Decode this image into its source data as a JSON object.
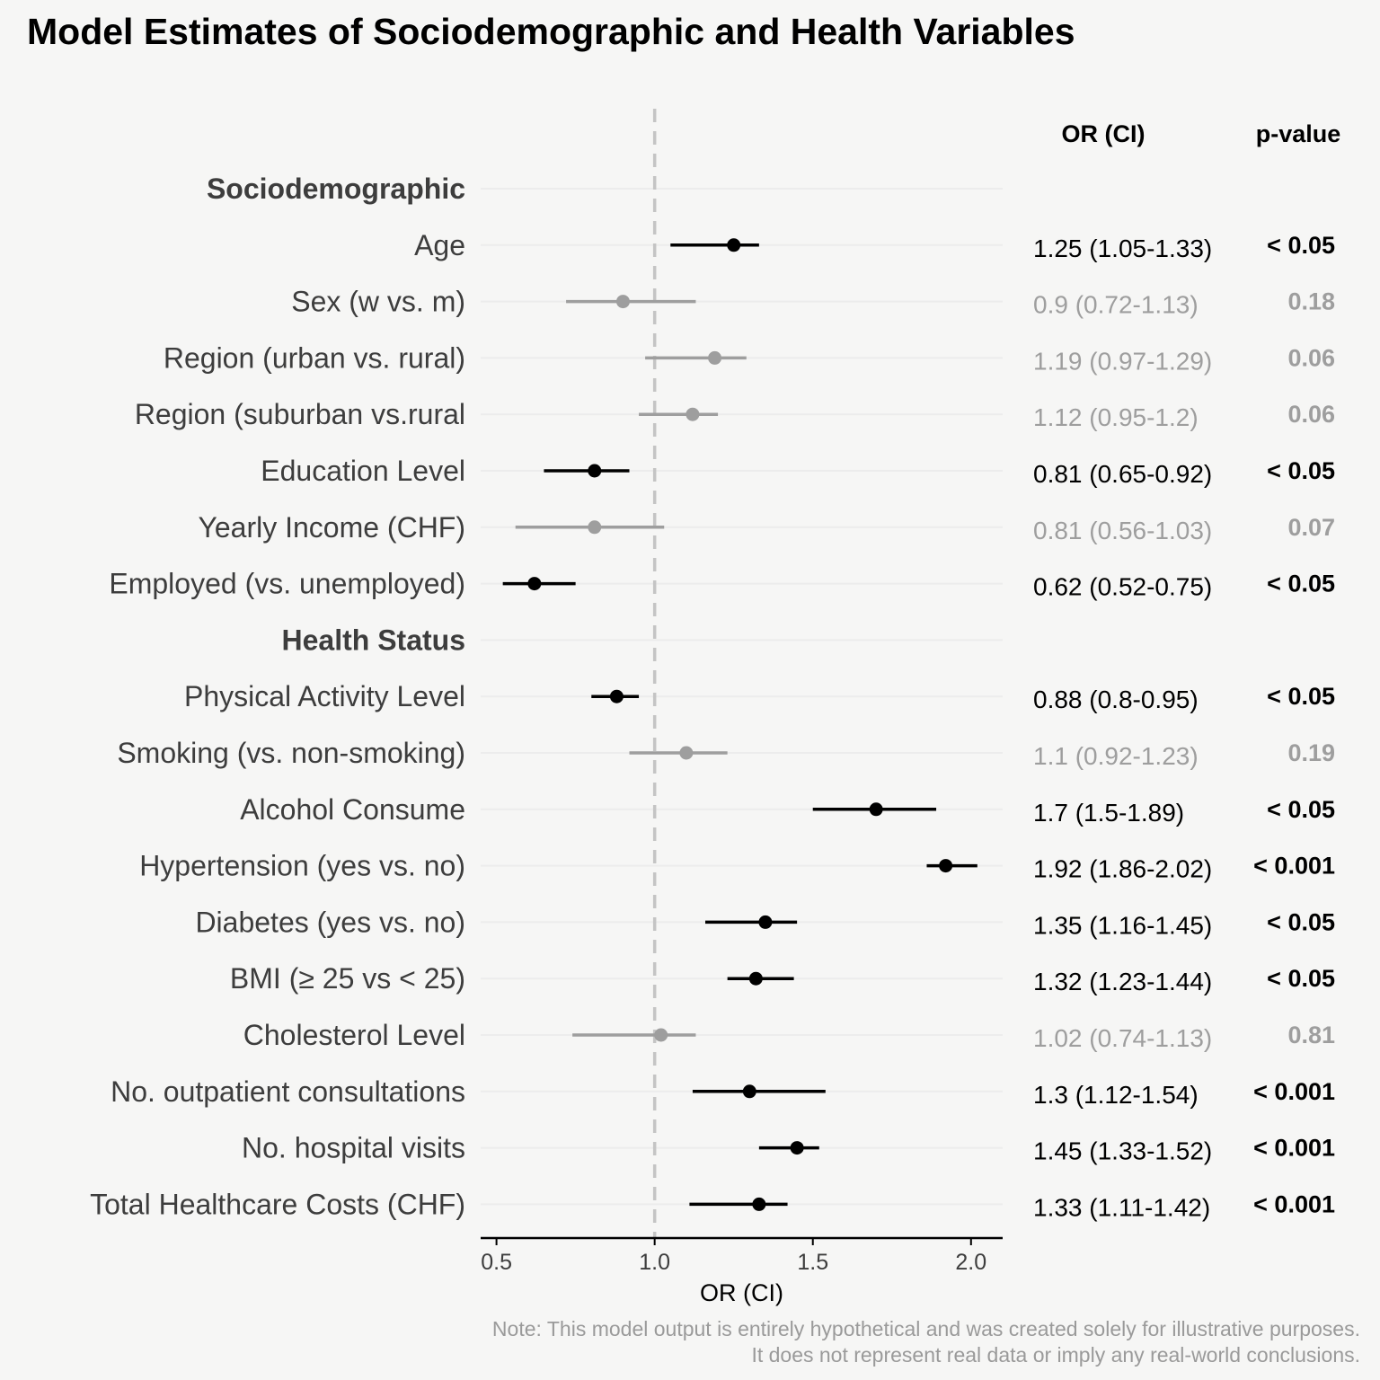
{
  "title": "Model Estimates of Sociodemographic and Health Variables",
  "note": {
    "line1": "Note: This model output is entirely hypothetical and was created solely for illustrative purposes.",
    "line2": "It does not represent real data or imply any real-world conclusions."
  },
  "colors": {
    "significant": "#000000",
    "nonsignificant": "#9e9e9e",
    "reference_line": "#c4c4c4",
    "background": "#f6f6f5",
    "group_header": "#3d3d3d",
    "row_label": "#3d3d3d"
  },
  "chart_data": {
    "type": "forest",
    "xlabel": "OR (CI)",
    "xlim": [
      0.45,
      2.1
    ],
    "xticks": [
      "0.5",
      "1.0",
      "1.5",
      "2.0"
    ],
    "reference_value": 1.0,
    "table_headers": {
      "estimate": "OR (CI)",
      "pvalue": "p-value"
    },
    "rows": [
      {
        "kind": "group",
        "label": "Sociodemographic"
      },
      {
        "kind": "item",
        "label": "Age",
        "or": 1.25,
        "lo": 1.05,
        "hi": 1.33,
        "or_ci": "1.25 (1.05-1.33)",
        "p": "< 0.05",
        "significant": true
      },
      {
        "kind": "item",
        "label": "Sex (w vs. m)",
        "or": 0.9,
        "lo": 0.72,
        "hi": 1.13,
        "or_ci": "0.9 (0.72-1.13)",
        "p": "0.18",
        "significant": false
      },
      {
        "kind": "item",
        "label": "Region (urban vs. rural)",
        "or": 1.19,
        "lo": 0.97,
        "hi": 1.29,
        "or_ci": "1.19 (0.97-1.29)",
        "p": "0.06",
        "significant": false
      },
      {
        "kind": "item",
        "label": "Region (suburban vs.rural",
        "or": 1.12,
        "lo": 0.95,
        "hi": 1.2,
        "or_ci": "1.12 (0.95-1.2)",
        "p": "0.06",
        "significant": false
      },
      {
        "kind": "item",
        "label": "Education Level",
        "or": 0.81,
        "lo": 0.65,
        "hi": 0.92,
        "or_ci": "0.81 (0.65-0.92)",
        "p": "< 0.05",
        "significant": true
      },
      {
        "kind": "item",
        "label": "Yearly Income (CHF)",
        "or": 0.81,
        "lo": 0.56,
        "hi": 1.03,
        "or_ci": "0.81 (0.56-1.03)",
        "p": "0.07",
        "significant": false
      },
      {
        "kind": "item",
        "label": "Employed (vs. unemployed)",
        "or": 0.62,
        "lo": 0.52,
        "hi": 0.75,
        "or_ci": "0.62 (0.52-0.75)",
        "p": "< 0.05",
        "significant": true
      },
      {
        "kind": "group",
        "label": "Health Status"
      },
      {
        "kind": "item",
        "label": "Physical Activity Level",
        "or": 0.88,
        "lo": 0.8,
        "hi": 0.95,
        "or_ci": "0.88 (0.8-0.95)",
        "p": "< 0.05",
        "significant": true
      },
      {
        "kind": "item",
        "label": "Smoking (vs. non-smoking)",
        "or": 1.1,
        "lo": 0.92,
        "hi": 1.23,
        "or_ci": "1.1 (0.92-1.23)",
        "p": "0.19",
        "significant": false
      },
      {
        "kind": "item",
        "label": "Alcohol Consume",
        "or": 1.7,
        "lo": 1.5,
        "hi": 1.89,
        "or_ci": "1.7 (1.5-1.89)",
        "p": "< 0.05",
        "significant": true
      },
      {
        "kind": "item",
        "label": "Hypertension (yes vs. no)",
        "or": 1.92,
        "lo": 1.86,
        "hi": 2.02,
        "or_ci": "1.92 (1.86-2.02)",
        "p": "< 0.001",
        "significant": true
      },
      {
        "kind": "item",
        "label": "Diabetes (yes vs. no)",
        "or": 1.35,
        "lo": 1.16,
        "hi": 1.45,
        "or_ci": "1.35 (1.16-1.45)",
        "p": "< 0.05",
        "significant": true
      },
      {
        "kind": "item",
        "label": "BMI (≥ 25 vs < 25)",
        "or": 1.32,
        "lo": 1.23,
        "hi": 1.44,
        "or_ci": "1.32 (1.23-1.44)",
        "p": "< 0.05",
        "significant": true
      },
      {
        "kind": "item",
        "label": "Cholesterol Level",
        "or": 1.02,
        "lo": 0.74,
        "hi": 1.13,
        "or_ci": "1.02 (0.74-1.13)",
        "p": "0.81",
        "significant": false
      },
      {
        "kind": "item",
        "label": "No. outpatient consultations",
        "or": 1.3,
        "lo": 1.12,
        "hi": 1.54,
        "or_ci": "1.3 (1.12-1.54)",
        "p": "< 0.001",
        "significant": true
      },
      {
        "kind": "item",
        "label": "No. hospital visits",
        "or": 1.45,
        "lo": 1.33,
        "hi": 1.52,
        "or_ci": "1.45 (1.33-1.52)",
        "p": "< 0.001",
        "significant": true
      },
      {
        "kind": "item",
        "label": "Total Healthcare Costs (CHF)",
        "or": 1.33,
        "lo": 1.11,
        "hi": 1.42,
        "or_ci": "1.33 (1.11-1.42)",
        "p": "< 0.001",
        "significant": true
      }
    ]
  }
}
